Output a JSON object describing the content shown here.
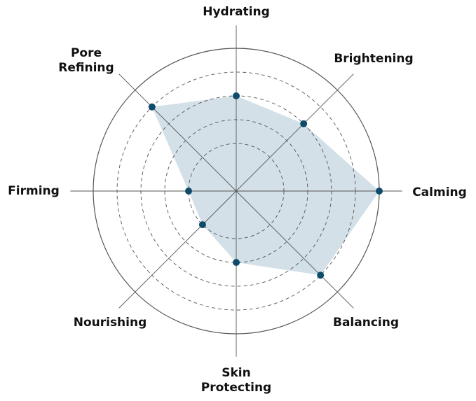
{
  "chart_data": {
    "type": "radar",
    "categories": [
      "Hydrating",
      "Brightening",
      "Calming",
      "Balancing",
      "Skin Protecting",
      "Nourishing",
      "Firming",
      "Pore Refining"
    ],
    "category_lines": [
      [
        "Hydrating"
      ],
      [
        "Brightening"
      ],
      [
        "Calming"
      ],
      [
        "Balancing"
      ],
      [
        "Skin",
        "Protecting"
      ],
      [
        "Nourishing"
      ],
      [
        "Firming"
      ],
      [
        "Pore",
        "Refining"
      ]
    ],
    "values": [
      4,
      4,
      6,
      5,
      3,
      2,
      2,
      5
    ],
    "rlim": [
      0,
      6
    ],
    "rings": [
      2,
      3,
      4,
      5,
      6
    ],
    "grid": true,
    "colors": {
      "fill": "#d3e0e8",
      "marker": "#0f4c6b",
      "grid": "#555555",
      "axis": "#555555"
    }
  }
}
